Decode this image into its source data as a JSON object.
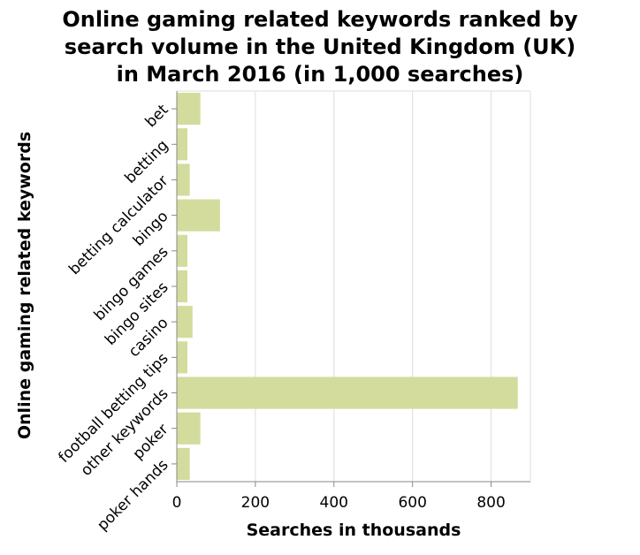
{
  "chart_data": {
    "type": "bar",
    "orientation": "horizontal",
    "title": "Online gaming related keywords ranked by search volume in the United Kingdom (UK) in March 2016 (in 1,000 searches)",
    "title_lines": [
      "Online gaming related keywords ranked by",
      "search volume in the United Kingdom (UK)",
      "in March 2016 (in 1,000 searches)"
    ],
    "xlabel": "Searches in thousands",
    "ylabel": "Online gaming related keywords",
    "xlim": [
      0,
      900
    ],
    "xticks": [
      0,
      200,
      400,
      600,
      800
    ],
    "grid": true,
    "colors": {
      "bar": "#d3dc9c",
      "grid": "#dddddd",
      "axis": "#888888"
    },
    "categories": [
      "bet",
      "betting",
      "betting calculator",
      "bingo",
      "bingo games",
      "bingo sites",
      "casino",
      "football betting tips",
      "other keywords",
      "poker",
      "poker hands"
    ],
    "values": [
      60,
      27,
      33,
      110,
      27,
      27,
      40,
      27,
      868,
      60,
      33
    ]
  }
}
